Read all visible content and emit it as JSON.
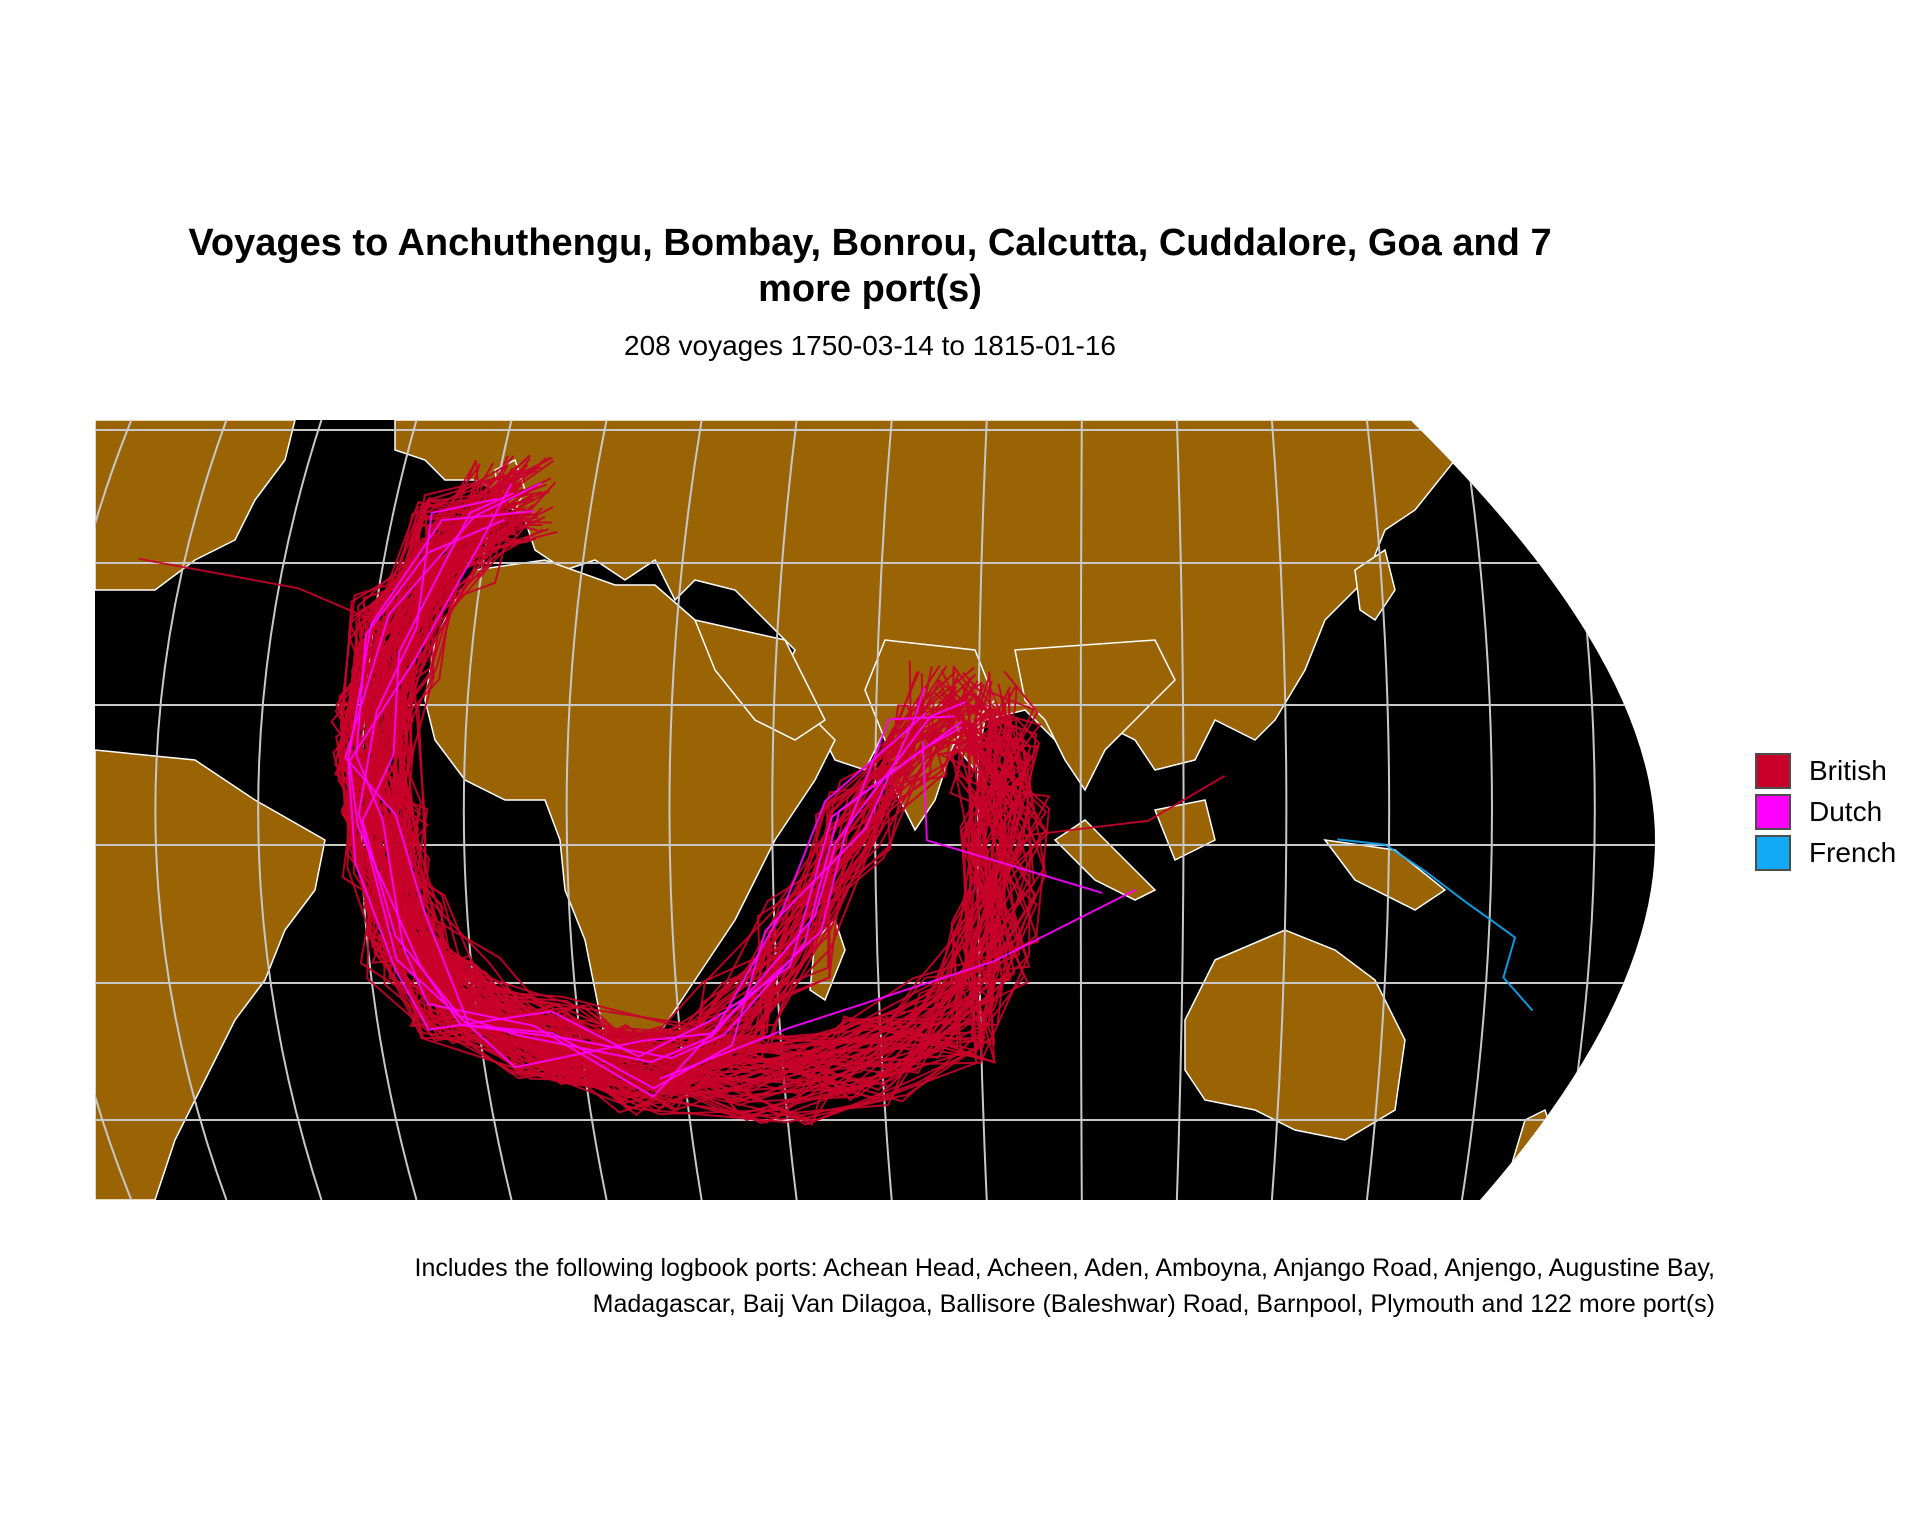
{
  "title_line1": "Voyages to Anchuthengu, Bombay, Bonrou, Calcutta, Cuddalore, Goa and 7",
  "title_line2": "more port(s)",
  "subtitle": "208 voyages 1750-03-14 to 1815-01-16",
  "caption_line1": "Includes the following logbook ports: Achean Head, Acheen, Aden, Amboyna, Anjango Road, Anjengo, Augustine Bay,",
  "caption_line2": "Madagascar, Baij Van Dilagoa, Ballisore (Baleshwar) Road, Barnpool, Plymouth and 122 more port(s)",
  "colors": {
    "ocean": "#000000",
    "land": "#9a6405",
    "graticule": "#c8c8c8",
    "border": "#ffffff"
  },
  "legend": [
    {
      "label": "British",
      "color": "#c8002a"
    },
    {
      "label": "Dutch",
      "color": "#ff00ff"
    },
    {
      "label": "French",
      "color": "#10aaf5"
    }
  ],
  "chart_data": {
    "type": "map",
    "projection": "curved (Robinson-like) world projection",
    "routes": [
      {
        "nation": "British",
        "description": "Europe → Cape of Good Hope → India/Indian Ocean ports"
      },
      {
        "nation": "Dutch",
        "description": "Europe → Cape → Indian Ocean"
      },
      {
        "nation": "French",
        "description": "route near New Guinea"
      }
    ]
  }
}
